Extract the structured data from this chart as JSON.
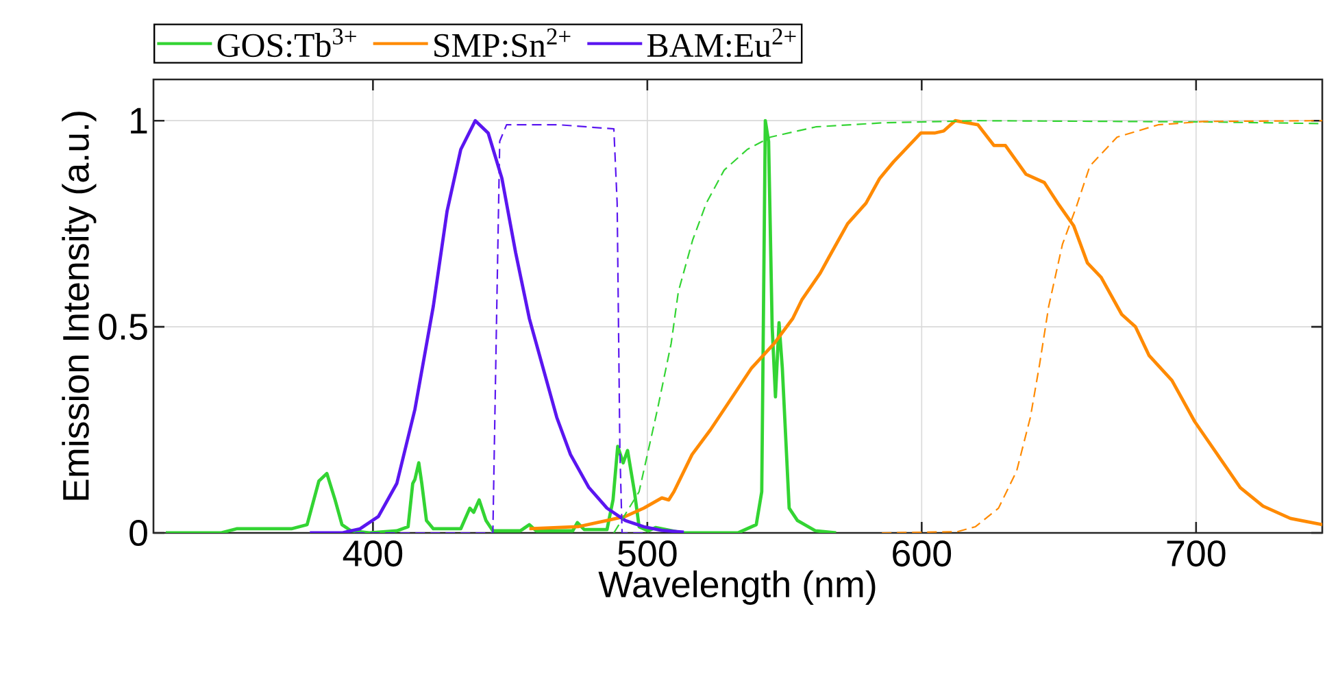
{
  "chart_data": {
    "type": "line",
    "xlabel": "Wavelength (nm)",
    "ylabel": "Emission Intensity (a.u.)",
    "xlim": [
      320,
      746
    ],
    "xticks": [
      400,
      500,
      600,
      700
    ],
    "ylim": [
      0,
      1.1
    ],
    "yticks": [
      0,
      0.5,
      1
    ],
    "grid": true,
    "legend": "top",
    "series": [
      {
        "name": "GOS:Tb$^{3+}$",
        "color": "#33d433",
        "line_style": "solid",
        "x": [
          324.5,
          344.5,
          350.3,
          370.3,
          376,
          380.3,
          383.2,
          386.2,
          388.7,
          392,
          398.7,
          408.7,
          412.8,
          414.5,
          415.3,
          416.7,
          417.8,
          419.5,
          422,
          432,
          435.3,
          436.7,
          438.7,
          441.2,
          443.7,
          453.7,
          457,
          459.5,
          472.8,
          474.5,
          477,
          485.3,
          487.5,
          489.2,
          491.2,
          492.8,
          495.3,
          497,
          500.3,
          503,
          513,
          533,
          539.7,
          541.7,
          543,
          544.2,
          545.5,
          546.7,
          548,
          549.2,
          551.7,
          554.7,
          561.3,
          568.8
        ],
        "values": [
          0,
          0,
          0.01,
          0.01,
          0.02,
          0.126,
          0.144,
          0.08,
          0.02,
          0.005,
          0,
          0.005,
          0.015,
          0.12,
          0.13,
          0.17,
          0.12,
          0.03,
          0.01,
          0.01,
          0.06,
          0.05,
          0.08,
          0.03,
          0.005,
          0.005,
          0.02,
          0.005,
          0.005,
          0.025,
          0.008,
          0.008,
          0.08,
          0.21,
          0.17,
          0.2,
          0.1,
          0.015,
          0.005,
          0.013,
          0,
          0,
          0.02,
          0.1,
          1,
          0.95,
          0.5,
          0.33,
          0.51,
          0.4,
          0.06,
          0.03,
          0.005,
          0
        ]
      },
      {
        "name": "SMP:Sn$^{2+}$",
        "color": "#ff8a00",
        "line_style": "solid",
        "x": [
          457,
          474.7,
          485.3,
          492,
          498.7,
          505.3,
          507.8,
          509.7,
          516.3,
          523,
          528,
          538,
          546.3,
          553,
          556.3,
          563,
          566.3,
          573,
          579.7,
          584.7,
          589.7,
          599.7,
          604.7,
          608,
          612.2,
          620.5,
          626.3,
          630.5,
          638,
          644.7,
          649.6,
          655.4,
          660.4,
          665.4,
          672.9,
          677.9,
          682.9,
          691.2,
          699.5,
          707.8,
          716.1,
          724.4,
          734.4,
          746
        ],
        "values": [
          0.01,
          0.015,
          0.03,
          0.04,
          0.06,
          0.085,
          0.08,
          0.1,
          0.19,
          0.25,
          0.3,
          0.4,
          0.46,
          0.52,
          0.565,
          0.63,
          0.67,
          0.75,
          0.8,
          0.86,
          0.9,
          0.97,
          0.97,
          0.975,
          1,
          0.99,
          0.94,
          0.94,
          0.87,
          0.85,
          0.8,
          0.745,
          0.655,
          0.62,
          0.53,
          0.5,
          0.43,
          0.37,
          0.27,
          0.19,
          0.11,
          0.065,
          0.035,
          0.02
        ]
      },
      {
        "name": "BAM:Eu$^{2+}$",
        "color": "#5a16f0",
        "line_style": "solid",
        "x": [
          377,
          388.7,
          395.3,
          402,
          408.7,
          415.3,
          422,
          427,
          432,
          437.3,
          442,
          447,
          452,
          457,
          462,
          467,
          472,
          478.7,
          485.3,
          492,
          498.7,
          505.3,
          513.3
        ],
        "values": [
          0,
          0,
          0.01,
          0.04,
          0.12,
          0.3,
          0.55,
          0.78,
          0.93,
          1,
          0.97,
          0.86,
          0.68,
          0.52,
          0.4,
          0.28,
          0.19,
          0.11,
          0.06,
          0.03,
          0.015,
          0.006,
          0.002
        ]
      },
      {
        "color": "#33d433",
        "line_style": "dashed",
        "x": [
          487.8,
          497,
          503.7,
          508.7,
          511.3,
          516.5,
          521.5,
          528,
          536.4,
          544.8,
          561.4,
          586.4,
          619.6,
          703,
          746
        ],
        "values": [
          0,
          0.1,
          0.3,
          0.46,
          0.585,
          0.71,
          0.8,
          0.88,
          0.93,
          0.96,
          0.985,
          0.995,
          1,
          0.997,
          0.993
        ]
      },
      {
        "color": "#ff8a00",
        "line_style": "dashed",
        "x": [
          585.5,
          613,
          619.6,
          628,
          634.6,
          639.6,
          643,
          646.3,
          651.3,
          656.3,
          661.3,
          671.2,
          686.2,
          702.8,
          746
        ],
        "values": [
          0,
          0.003,
          0.015,
          0.06,
          0.15,
          0.28,
          0.41,
          0.55,
          0.7,
          0.79,
          0.89,
          0.96,
          0.99,
          0.998,
          1
        ]
      },
      {
        "color": "#5a16f0",
        "line_style": "dashed",
        "x": [
          377,
          443.7,
          445,
          446.2,
          448.7,
          468,
          487.8,
          489,
          490,
          490.8,
          498.7
        ],
        "values": [
          0,
          0,
          0.5,
          0.95,
          0.99,
          0.99,
          0.98,
          0.8,
          0.2,
          0,
          0
        ]
      }
    ]
  }
}
